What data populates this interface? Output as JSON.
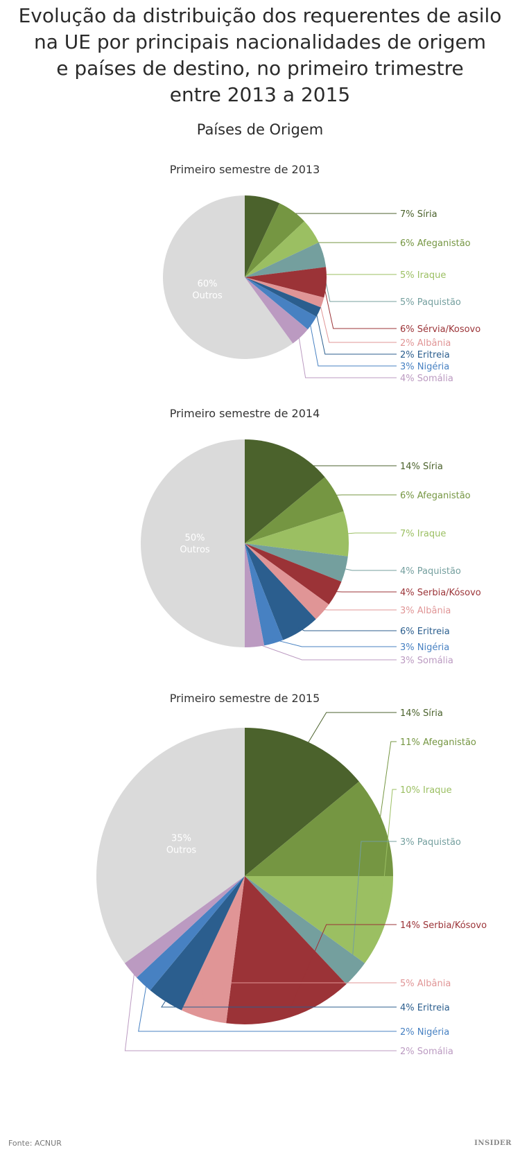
{
  "title_lines": [
    "Evolução da distribuição dos requerentes de asilo",
    "na UE por principais nacionalidades de origem",
    "e países de destino, no primeiro trimestre",
    "entre 2013 a 2015"
  ],
  "subtitle": "Países de Origem",
  "source": "Fonte: ACNUR",
  "brand": "INSIDER",
  "colors": {
    "Outros": "#dadada",
    "Síria": "#4b622c",
    "Afeganistão": "#759642",
    "Iraque": "#9bbf62",
    "Paquistão": "#749f9e",
    "Sérvia/Kosovo": "#9b3337",
    "Albânia": "#e09596",
    "Eritreia": "#2b5e8e",
    "Nigéria": "#4781c2",
    "Somália": "#bb9ac1"
  },
  "chart_data": [
    {
      "type": "pie",
      "title": "Primeiro semestre de 2013",
      "other": {
        "name": "Outros",
        "label_value": "60%",
        "label_name": "Outros"
      },
      "slices": [
        {
          "key": "Síria",
          "value": 7,
          "label": "7% Síria"
        },
        {
          "key": "Afeganistão",
          "value": 6,
          "label": "6% Afeganistão"
        },
        {
          "key": "Iraque",
          "value": 5,
          "label": "5% Iraque"
        },
        {
          "key": "Paquistão",
          "value": 5,
          "label": "5% Paquistão"
        },
        {
          "key": "Sérvia/Kosovo",
          "value": 6,
          "label": "6% Sérvia/Kosovo"
        },
        {
          "key": "Albânia",
          "value": 2,
          "label": "2% Albânia"
        },
        {
          "key": "Eritreia",
          "value": 2,
          "label": "2% Eritreia"
        },
        {
          "key": "Nigéria",
          "value": 3,
          "label": "3% Nigéria"
        },
        {
          "key": "Somália",
          "value": 4,
          "label": "4% Somália"
        }
      ]
    },
    {
      "type": "pie",
      "title": "Primeiro semestre de 2014",
      "other": {
        "name": "Outros",
        "label_value": "50%",
        "label_name": "Outros"
      },
      "slices": [
        {
          "key": "Síria",
          "value": 14,
          "label": "14% Síria"
        },
        {
          "key": "Afeganistão",
          "value": 6,
          "label": "6% Afeganistão"
        },
        {
          "key": "Iraque",
          "value": 7,
          "label": "7% Iraque"
        },
        {
          "key": "Paquistão",
          "value": 4,
          "label": "4% Paquistão"
        },
        {
          "key": "Sérvia/Kosovo",
          "value": 4,
          "label": "4% Serbia/Kósovo"
        },
        {
          "key": "Albânia",
          "value": 3,
          "label": "3% Albânia"
        },
        {
          "key": "Eritreia",
          "value": 6,
          "label": "6% Eritreia"
        },
        {
          "key": "Nigéria",
          "value": 3,
          "label": "3% Nigéria"
        },
        {
          "key": "Somália",
          "value": 3,
          "label": "3% Somália"
        }
      ]
    },
    {
      "type": "pie",
      "title": "Primeiro semestre de 2015",
      "other": {
        "name": "Outros",
        "label_value": "35%",
        "label_name": "Outros"
      },
      "slices": [
        {
          "key": "Síria",
          "value": 14,
          "label": "14% Síria"
        },
        {
          "key": "Afeganistão",
          "value": 11,
          "label": "11% Afeganistão"
        },
        {
          "key": "Iraque",
          "value": 10,
          "label": "10% Iraque"
        },
        {
          "key": "Paquistão",
          "value": 3,
          "label": "3% Paquistão"
        },
        {
          "key": "Sérvia/Kosovo",
          "value": 14,
          "label": "14% Serbia/Kósovo"
        },
        {
          "key": "Albânia",
          "value": 5,
          "label": "5% Albânia"
        },
        {
          "key": "Eritreia",
          "value": 4,
          "label": "4% Eritreia"
        },
        {
          "key": "Nigéria",
          "value": 2,
          "label": "2% Nigéria"
        },
        {
          "key": "Somália",
          "value": 2,
          "label": "2% Somália"
        }
      ]
    }
  ]
}
